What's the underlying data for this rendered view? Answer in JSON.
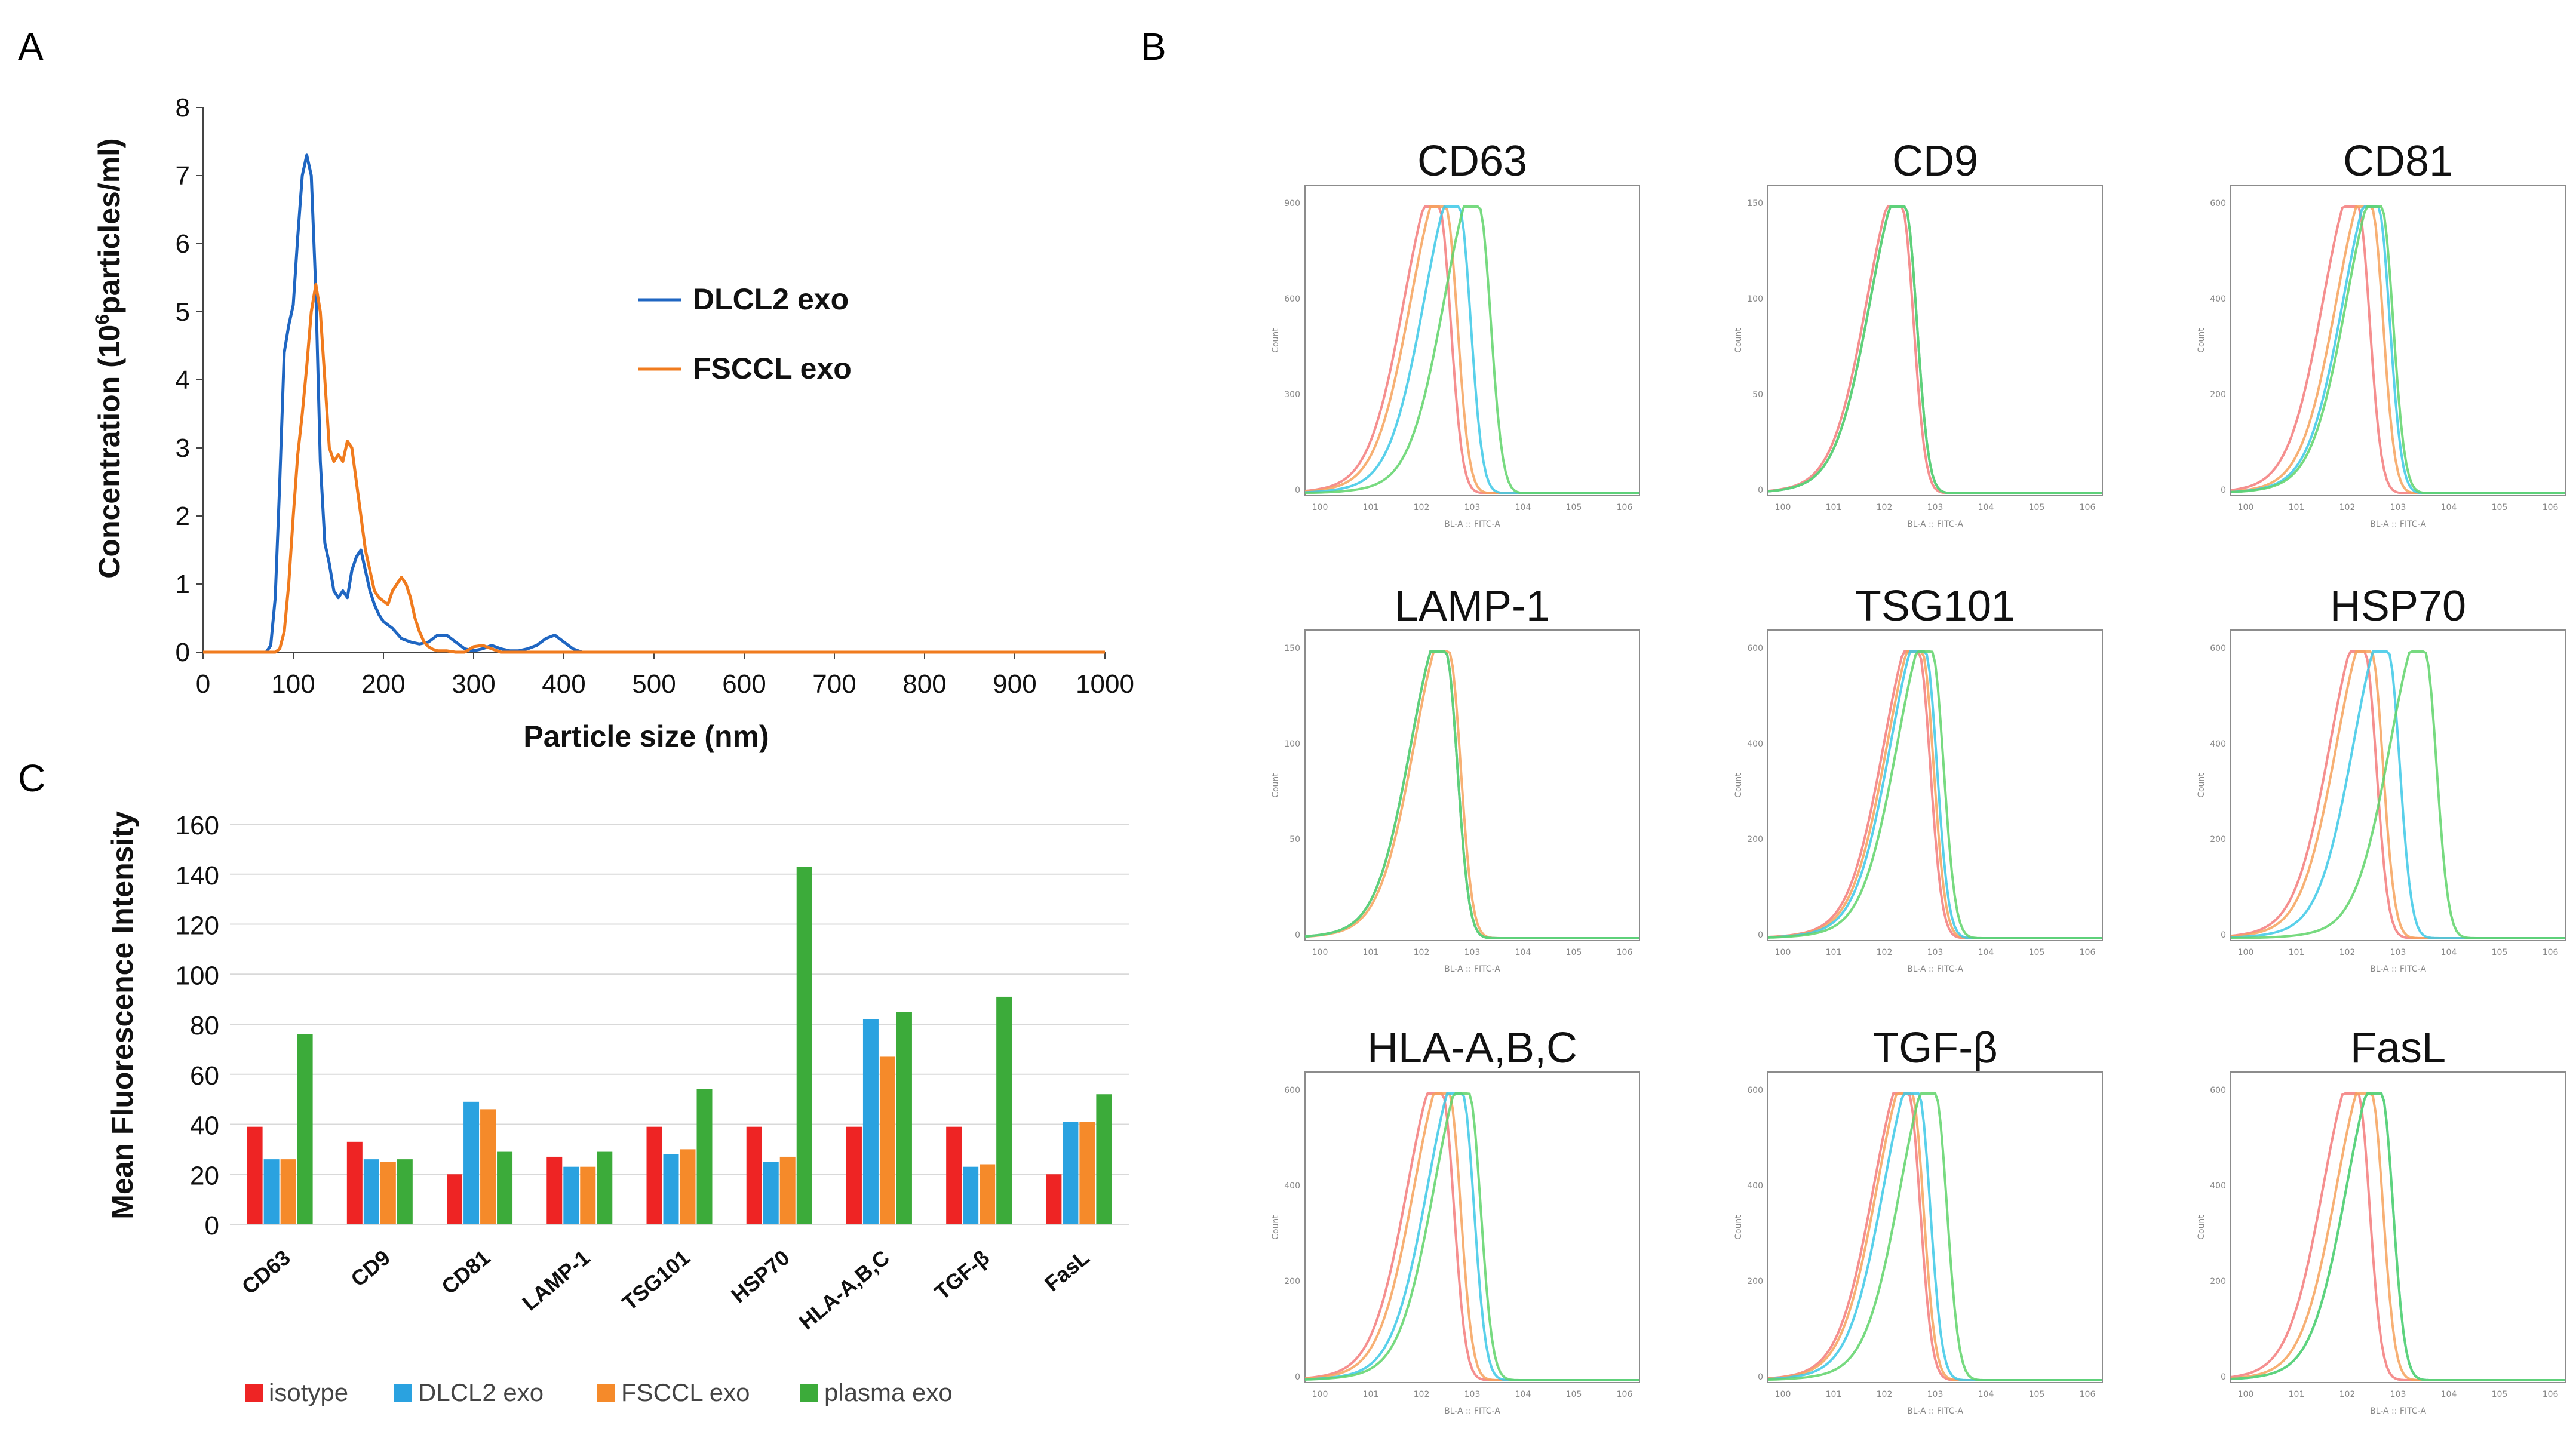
{
  "panel_labels": {
    "a": "A",
    "b": "B",
    "c": "C"
  },
  "colors": {
    "dlcl2_line": "#1f66c2",
    "fsccl_line": "#f07b1e",
    "isotype": "#ee2424",
    "dlcl2_bar": "#2aa2e0",
    "fsccl_bar": "#f58a2a",
    "plasma": "#3cab3a",
    "hist_red": "#f37b7b",
    "hist_orange": "#f6a25c",
    "hist_cyan": "#3cc8e6",
    "hist_green": "#5fd46a"
  },
  "chart_data": [
    {
      "id": "A",
      "type": "line",
      "title": "",
      "xlabel": "Particle size (nm)",
      "ylabel_prefix": "Concentration (10",
      "ylabel_sup": "6",
      "ylabel_suffix": "particles/ml)",
      "xlim": [
        0,
        1000
      ],
      "ylim": [
        0,
        8
      ],
      "xticks": [
        "0",
        "100",
        "200",
        "300",
        "400",
        "500",
        "600",
        "700",
        "800",
        "900",
        "1000"
      ],
      "yticks": [
        "0",
        "1",
        "2",
        "3",
        "4",
        "5",
        "6",
        "7",
        "8"
      ],
      "legend_position": "right",
      "series": [
        {
          "name": "DLCL2 exo",
          "color_key": "dlcl2_line",
          "x": [
            0,
            70,
            75,
            80,
            85,
            90,
            95,
            100,
            105,
            110,
            115,
            120,
            125,
            130,
            135,
            140,
            145,
            150,
            155,
            160,
            165,
            170,
            175,
            180,
            185,
            190,
            195,
            200,
            210,
            220,
            230,
            240,
            250,
            260,
            270,
            280,
            290,
            300,
            310,
            320,
            330,
            340,
            350,
            360,
            370,
            380,
            390,
            400,
            410,
            420,
            430,
            1000
          ],
          "y": [
            0,
            0,
            0.1,
            0.8,
            2.5,
            4.4,
            4.8,
            5.1,
            6.1,
            7.0,
            7.3,
            7.0,
            5.3,
            2.8,
            1.6,
            1.3,
            0.9,
            0.8,
            0.9,
            0.8,
            1.2,
            1.4,
            1.5,
            1.2,
            0.9,
            0.7,
            0.55,
            0.45,
            0.35,
            0.2,
            0.15,
            0.12,
            0.15,
            0.25,
            0.25,
            0.15,
            0.05,
            0.02,
            0.05,
            0.1,
            0.05,
            0.02,
            0.02,
            0.05,
            0.1,
            0.2,
            0.25,
            0.15,
            0.05,
            0,
            0,
            0
          ]
        },
        {
          "name": "FSCCL exo",
          "color_key": "fsccl_line",
          "x": [
            0,
            80,
            85,
            90,
            95,
            100,
            105,
            110,
            115,
            120,
            125,
            130,
            135,
            140,
            145,
            150,
            155,
            160,
            165,
            170,
            175,
            180,
            185,
            190,
            195,
            200,
            205,
            210,
            215,
            220,
            225,
            230,
            235,
            240,
            245,
            250,
            255,
            260,
            270,
            280,
            290,
            300,
            310,
            320,
            330,
            340,
            350,
            360,
            1000
          ],
          "y": [
            0,
            0,
            0.05,
            0.3,
            1.0,
            2.0,
            2.9,
            3.5,
            4.2,
            5.0,
            5.4,
            5.0,
            4.0,
            3.0,
            2.8,
            2.9,
            2.8,
            3.1,
            3.0,
            2.5,
            2.0,
            1.5,
            1.2,
            0.9,
            0.8,
            0.75,
            0.7,
            0.9,
            1.0,
            1.1,
            1.0,
            0.8,
            0.5,
            0.3,
            0.15,
            0.08,
            0.04,
            0.02,
            0.02,
            0,
            0,
            0.08,
            0.1,
            0.05,
            0,
            0,
            0,
            0,
            0
          ]
        }
      ]
    },
    {
      "id": "C",
      "type": "bar",
      "title": "",
      "xlabel": "",
      "ylabel": "Mean  Fluorescence Intensity",
      "ylim": [
        0,
        160
      ],
      "yticks": [
        "0",
        "20",
        "40",
        "60",
        "80",
        "100",
        "120",
        "140",
        "160"
      ],
      "grid": true,
      "legend_position": "bottom",
      "categories": [
        "CD63",
        "CD9",
        "CD81",
        "LAMP-1",
        "TSG101",
        "HSP70",
        "HLA-A,B,C",
        "TGF-β",
        "FasL"
      ],
      "series": [
        {
          "name": "isotype",
          "color_key": "isotype",
          "values": [
            39,
            33,
            20,
            27,
            39,
            39,
            39,
            39,
            20
          ]
        },
        {
          "name": "DLCL2 exo",
          "color_key": "dlcl2_bar",
          "values": [
            26,
            26,
            49,
            23,
            28,
            25,
            82,
            23,
            41
          ]
        },
        {
          "name": "FSCCL exo",
          "color_key": "fsccl_bar",
          "values": [
            26,
            25,
            46,
            23,
            30,
            27,
            67,
            24,
            41
          ]
        },
        {
          "name": "plasma exo",
          "color_key": "plasma",
          "values": [
            76,
            26,
            29,
            29,
            54,
            143,
            85,
            91,
            52
          ]
        }
      ]
    },
    {
      "id": "B",
      "type": "line",
      "subtype": "flow-cytometry-histograms",
      "xlabel_small": "BL-A :: FITC-A",
      "ylabel_small": "Count",
      "panels": [
        {
          "title": "CD63",
          "peaks": {
            "red": 0.4,
            "orange": 0.42,
            "cyan": 0.46,
            "green": 0.52
          },
          "yticks": [
            "0",
            "300",
            "600",
            "900"
          ]
        },
        {
          "title": "CD9",
          "peaks": {
            "red": 0.4,
            "orange": 0.41,
            "cyan": 0.41,
            "green": 0.41
          },
          "yticks": [
            "0",
            "50",
            "100",
            "150"
          ]
        },
        {
          "title": "CD81",
          "peaks": {
            "red": 0.38,
            "orange": 0.42,
            "cyan": 0.44,
            "green": 0.45
          },
          "yticks": [
            "0",
            "200",
            "400",
            "600"
          ]
        },
        {
          "title": "LAMP-1",
          "peaks": {
            "red": 0.42,
            "orange": 0.43,
            "cyan": 0.42,
            "green": 0.42
          },
          "yticks": [
            "0",
            "50",
            "100",
            "150"
          ]
        },
        {
          "title": "TSG101",
          "peaks": {
            "red": 0.45,
            "orange": 0.46,
            "cyan": 0.47,
            "green": 0.49
          },
          "yticks": [
            "0",
            "200",
            "400",
            "600"
          ]
        },
        {
          "title": "HSP70",
          "peaks": {
            "red": 0.4,
            "orange": 0.42,
            "cyan": 0.47,
            "green": 0.58
          },
          "yticks": [
            "0",
            "200",
            "400",
            "600"
          ]
        },
        {
          "title": "HLA-A,B,C",
          "peaks": {
            "red": 0.41,
            "orange": 0.43,
            "cyan": 0.47,
            "green": 0.49
          },
          "yticks": [
            "0",
            "200",
            "400",
            "600"
          ]
        },
        {
          "title": "TGF-β",
          "peaks": {
            "red": 0.42,
            "orange": 0.43,
            "cyan": 0.45,
            "green": 0.5
          },
          "yticks": [
            "0",
            "200",
            "400",
            "600"
          ]
        },
        {
          "title": "FasL",
          "peaks": {
            "red": 0.38,
            "orange": 0.42,
            "cyan": 0.45,
            "green": 0.45
          },
          "yticks": [
            "0",
            "200",
            "400",
            "600"
          ]
        }
      ]
    }
  ]
}
